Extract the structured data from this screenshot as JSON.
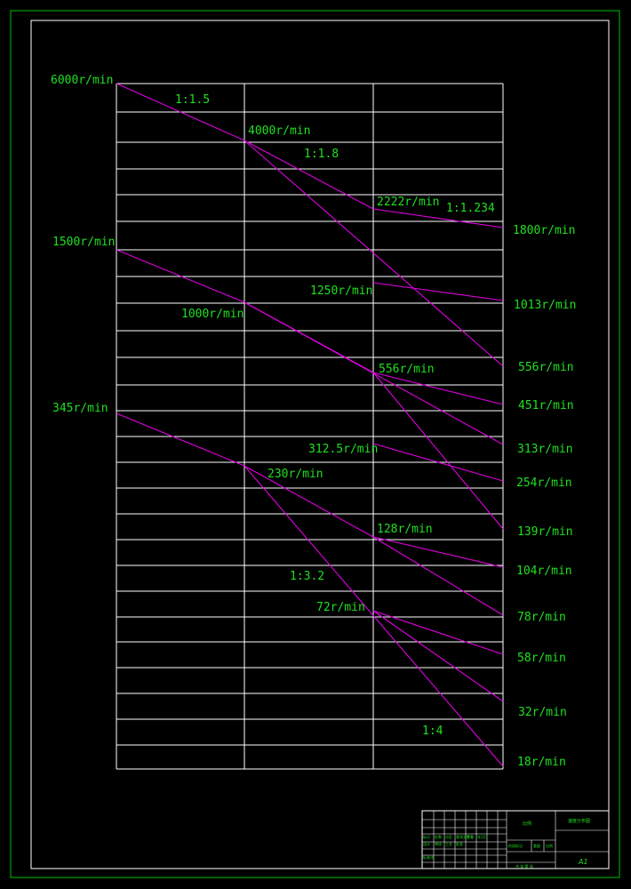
{
  "grid_color": "#ffffff",
  "ray_color": "#e000e0",
  "text_color": "#1fe01f",
  "frame_color": "#00c000",
  "input_speeds": [
    "6000r/min",
    "1500r/min",
    "345r/min"
  ],
  "stage2_speeds": [
    "4000r/min",
    "1000r/min",
    "230r/min"
  ],
  "stage3_speeds": [
    "2222r/min",
    "1250r/min",
    "556r/min",
    "312.5r/min",
    "128r/min",
    "72r/min"
  ],
  "output_speeds": [
    "1800r/min",
    "1013r/min",
    "556r/min",
    "451r/min",
    "313r/min",
    "254r/min",
    "139r/min",
    "104r/min",
    "78r/min",
    "58r/min",
    "32r/min",
    "18r/min"
  ],
  "ratios": [
    "1:1.5",
    "1:1.8",
    "1:1.234",
    "1:3.2",
    "1:4"
  ],
  "title_block": {
    "drawing_title": "速度分布图",
    "scale_label": "比例",
    "sheet_size": "A1",
    "cells": [
      "标记",
      "处数",
      "分区",
      "更改文件号",
      "签名",
      "年月日",
      "设计",
      "标准化",
      "审核",
      "工艺",
      "批准",
      "阶段标记",
      "重量",
      "比例",
      "共 张 第 张"
    ]
  }
}
